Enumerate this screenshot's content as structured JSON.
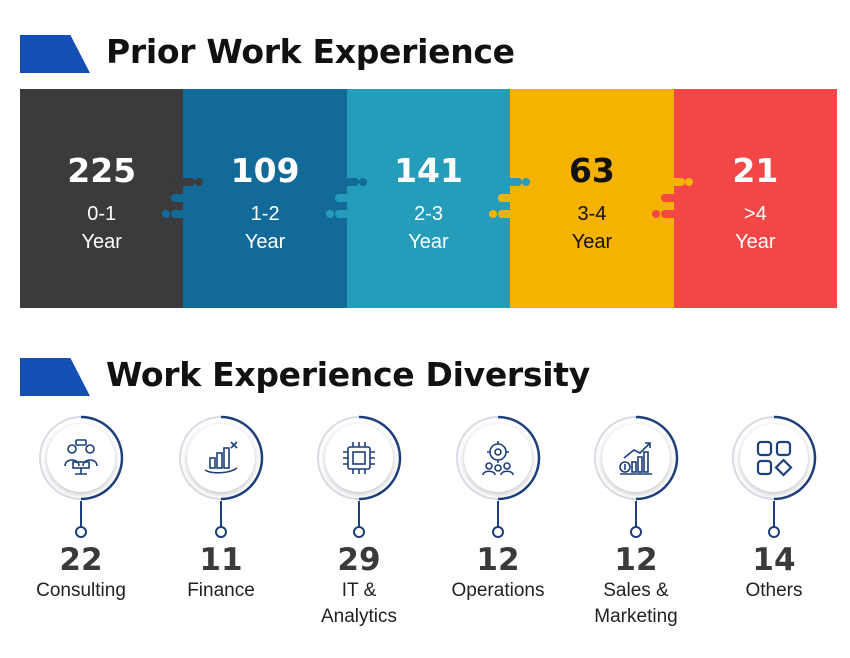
{
  "sections": {
    "prior_title": "Prior Work Experience",
    "diversity_title": "Work Experience Diversity"
  },
  "colors": {
    "accent_blue": "#1450b4",
    "seg_1": "#3b3b3d",
    "seg_2": "#126a99",
    "seg_3": "#259dba",
    "seg_4": "#f6b200",
    "seg_5": "#f34747",
    "ring": "#1d3f7a"
  },
  "experience": [
    {
      "count": "225",
      "range": "0-1",
      "unit": "Year"
    },
    {
      "count": "109",
      "range": "1-2",
      "unit": "Year"
    },
    {
      "count": "141",
      "range": "2-3",
      "unit": "Year"
    },
    {
      "count": "63",
      "range": "3-4",
      "unit": "Year"
    },
    {
      "count": "21",
      "range": ">4",
      "unit": "Year"
    }
  ],
  "diversity": [
    {
      "count": "22",
      "label": "Consulting",
      "icon": "consulting-icon"
    },
    {
      "count": "11",
      "label": "Finance",
      "icon": "finance-icon"
    },
    {
      "count": "29",
      "label": "IT &\nAnalytics",
      "icon": "chip-icon"
    },
    {
      "count": "12",
      "label": "Operations",
      "icon": "operations-icon"
    },
    {
      "count": "12",
      "label": "Sales &\nMarketing",
      "icon": "growth-chart-icon"
    },
    {
      "count": "14",
      "label": "Others",
      "icon": "apps-grid-icon"
    }
  ]
}
